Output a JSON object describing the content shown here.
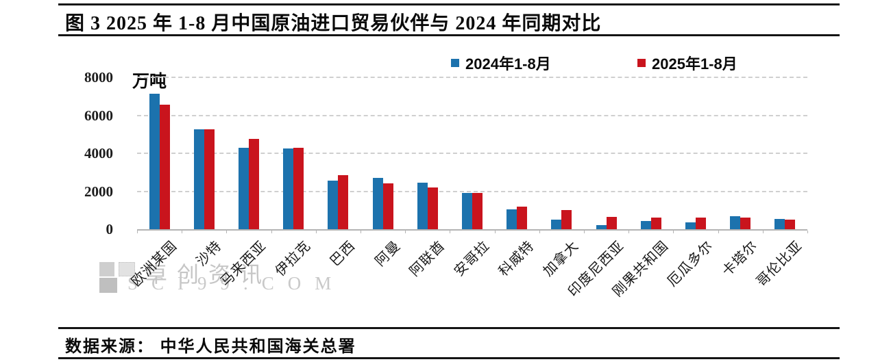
{
  "title": "图 3  2025 年 1-8 月中国原油进口贸易伙伴与 2024 年同期对比",
  "unit_label": "万吨",
  "legend": {
    "items": [
      {
        "label": "2024年1-8月",
        "color": "#1c72ad"
      },
      {
        "label": "2025年1-8月",
        "color": "#c9141d"
      }
    ]
  },
  "watermark": {
    "brand": "卓创资讯",
    "site": "SCI99.COM"
  },
  "footer": {
    "source_text": "数据来源： 中华人民共和国海关总署"
  },
  "chart_data": {
    "type": "bar",
    "title": "2025年1-8月中国原油进口贸易伙伴与2024年同期对比",
    "ylabel": "万吨",
    "ylim": [
      0,
      8000
    ],
    "yticks": [
      0,
      2000,
      4000,
      6000,
      8000
    ],
    "grid": "dashed-horizontal",
    "legend_position": "top",
    "categories": [
      "欧洲某国",
      "沙特",
      "马来西亚",
      "伊拉克",
      "巴西",
      "阿曼",
      "阿联酋",
      "安哥拉",
      "科威特",
      "加拿大",
      "印度尼西亚",
      "刚果共和国",
      "厄瓜多尔",
      "卡塔尔",
      "哥伦比亚"
    ],
    "series": [
      {
        "name": "2024年1-8月",
        "color": "#1c72ad",
        "values": [
          7150,
          5250,
          4300,
          4250,
          2550,
          2700,
          2450,
          1900,
          1050,
          500,
          200,
          450,
          350,
          700,
          550
        ]
      },
      {
        "name": "2025年1-8月",
        "color": "#c9141d",
        "values": [
          6550,
          5250,
          4750,
          4300,
          2850,
          2400,
          2200,
          1900,
          1200,
          1000,
          650,
          600,
          600,
          600,
          500
        ]
      }
    ]
  }
}
